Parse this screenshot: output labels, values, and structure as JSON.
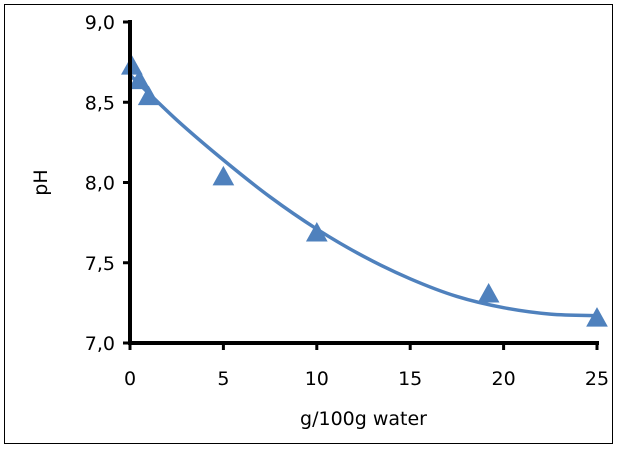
{
  "chart_data": {
    "type": "scatter",
    "title": "",
    "xlabel": "g/100g water",
    "ylabel": "pH",
    "xlim": [
      0,
      25
    ],
    "ylim": [
      7.0,
      9.0
    ],
    "x_ticks": [
      0,
      5,
      10,
      15,
      20,
      25
    ],
    "x_tick_labels": [
      "0",
      "5",
      "10",
      "15",
      "20",
      "25"
    ],
    "y_ticks": [
      7.0,
      7.5,
      8.0,
      8.5,
      9.0
    ],
    "y_tick_labels": [
      "7,0",
      "7,5",
      "8,0",
      "8,5",
      "9,0"
    ],
    "grid": false,
    "legend": "none",
    "marker": "triangle",
    "color": "#4f81bd",
    "series": [
      {
        "name": "",
        "x": [
          0.1,
          0.5,
          1.0,
          5.0,
          10.0,
          19.2,
          25.0
        ],
        "y": [
          8.72,
          8.63,
          8.53,
          8.03,
          7.68,
          7.3,
          7.15
        ]
      }
    ],
    "trendline": {
      "type": "polynomial",
      "order": 2,
      "color": "#4f81bd",
      "x": [
        0,
        2.5,
        5,
        7.5,
        10,
        12.5,
        15,
        17.5,
        20,
        22.5,
        25
      ],
      "y": [
        8.67,
        8.39,
        8.14,
        7.91,
        7.71,
        7.54,
        7.4,
        7.29,
        7.22,
        7.18,
        7.17
      ]
    }
  }
}
